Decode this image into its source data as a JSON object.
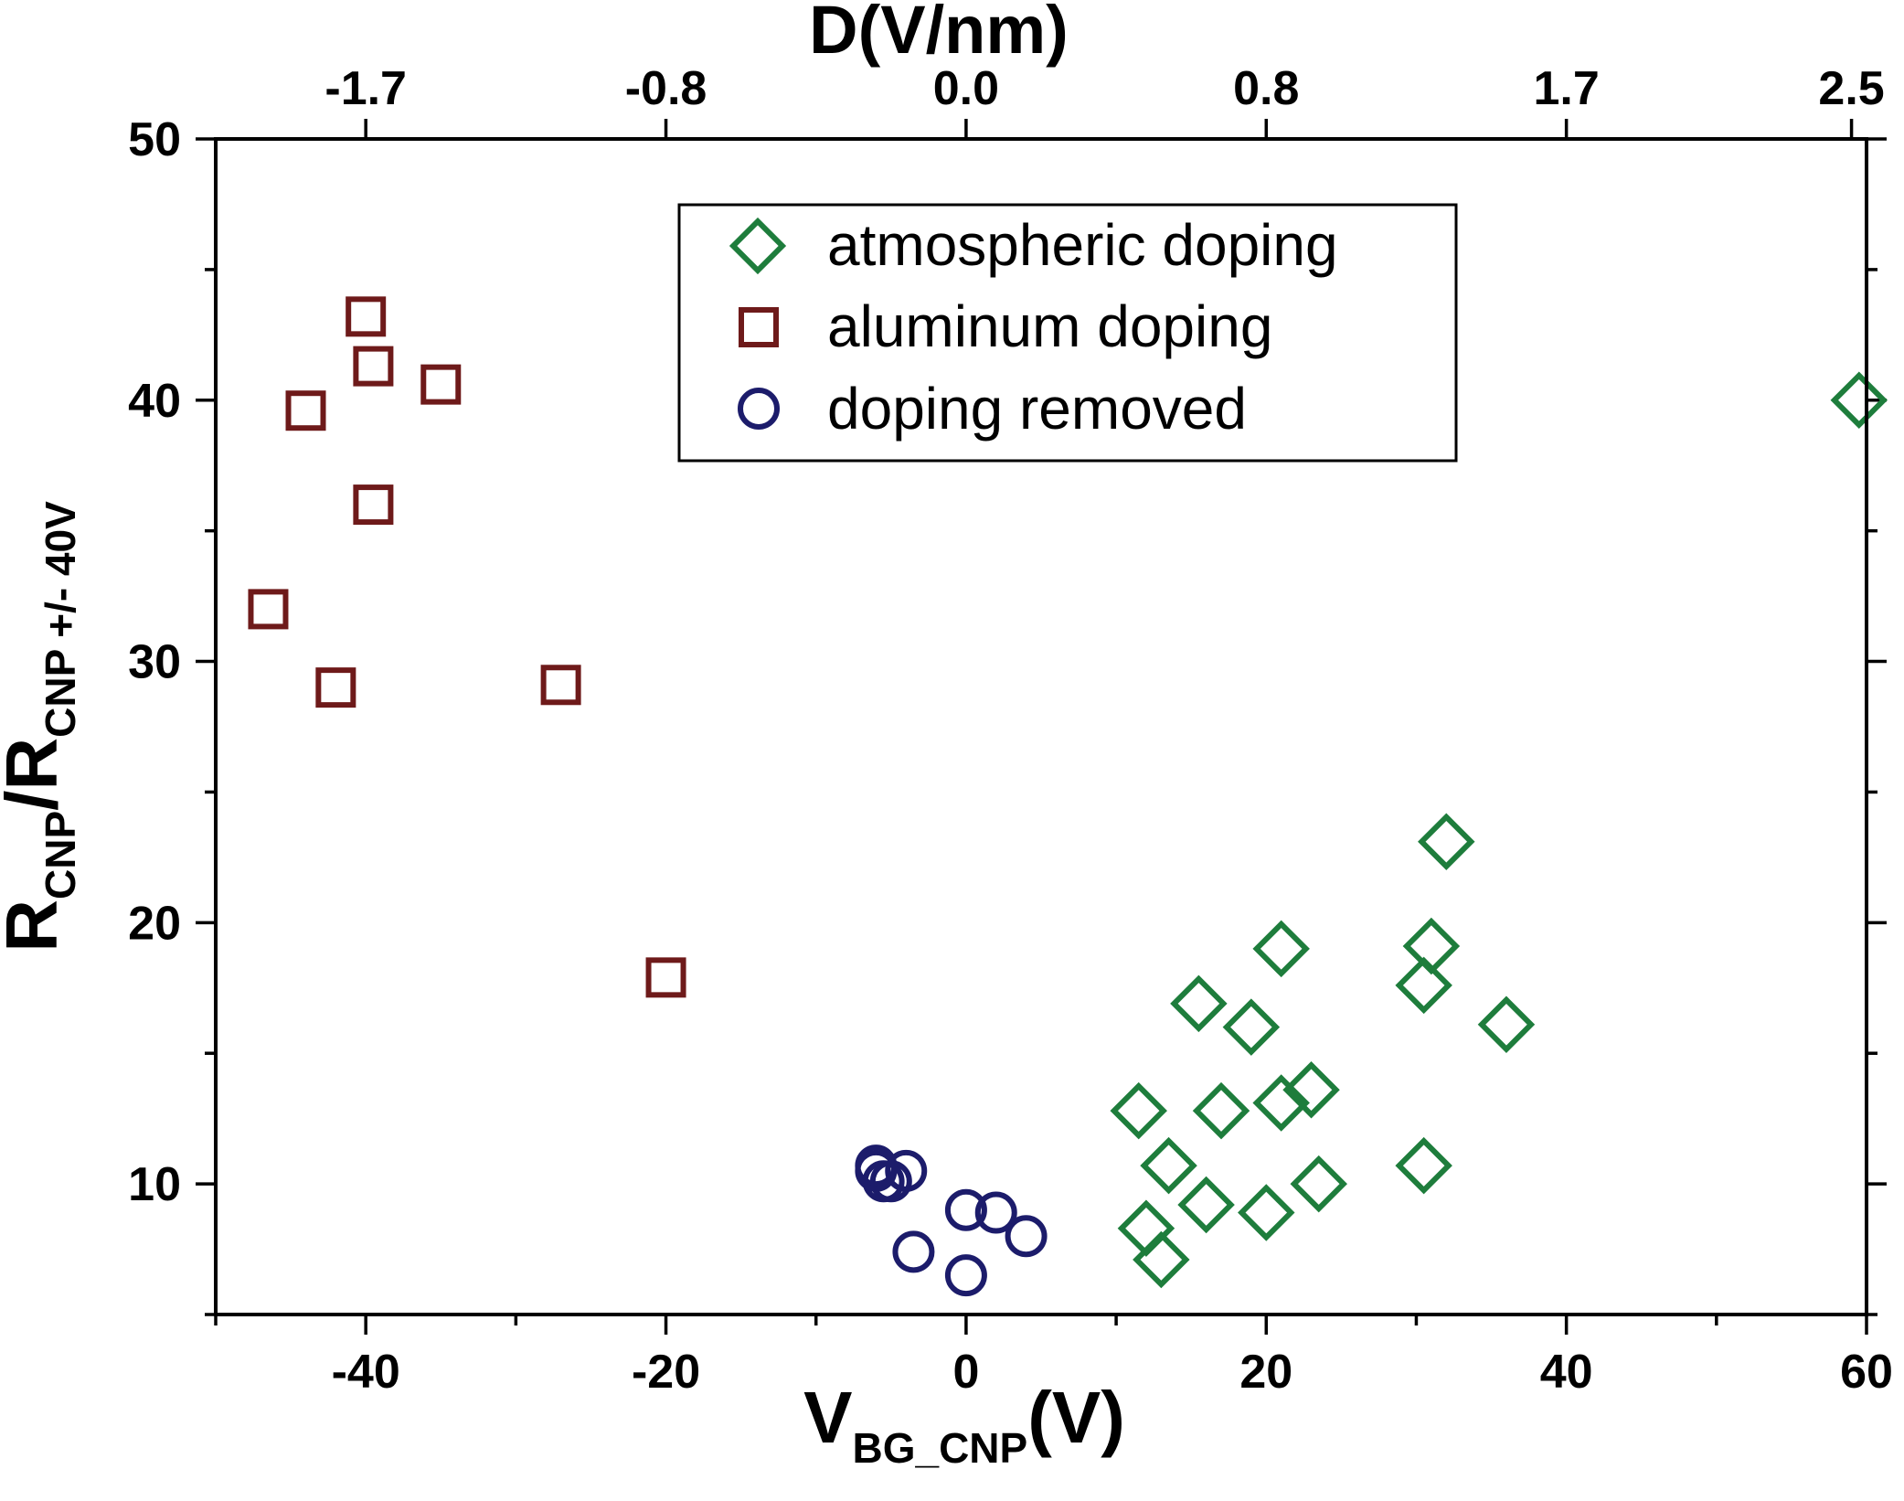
{
  "chart_data": {
    "type": "scatter",
    "x_axis": {
      "label_main": "V",
      "label_sub": "BG_CNP",
      "label_unit": "(V)",
      "range": [
        -50,
        60
      ],
      "ticks": [
        -40,
        -20,
        0,
        20,
        40,
        60
      ],
      "tick_labels": [
        "-40",
        "-20",
        "0",
        "20",
        "40",
        "60"
      ],
      "minor_ticks": [
        -50,
        -30,
        -10,
        10,
        30,
        50
      ]
    },
    "top_axis": {
      "label": "D(V/nm)",
      "tick_positions_bottom_units": [
        -40,
        -20,
        0,
        20,
        40,
        59
      ],
      "tick_labels": [
        "-1.7",
        "-0.8",
        "0.0",
        "0.8",
        "1.7",
        "2.5"
      ]
    },
    "y_axis": {
      "label_r1": "R",
      "label_sub1": "CNP",
      "label_slash": "/R",
      "label_sub2": "CNP +/- 40V",
      "range": [
        5,
        50
      ],
      "ticks": [
        10,
        20,
        30,
        40,
        50
      ],
      "tick_labels": [
        "10",
        "20",
        "30",
        "40",
        "50"
      ],
      "minor_ticks": [
        5,
        15,
        25,
        35,
        45
      ]
    },
    "legend": {
      "position": "top-center",
      "entries": [
        "atmospheric doping",
        "aluminum doping",
        "doping removed"
      ]
    },
    "series": [
      {
        "name": "atmospheric doping",
        "marker": "diamond",
        "color": "#1e7d3c",
        "points": [
          [
            59.5,
            40.0
          ],
          [
            32.0,
            23.1
          ],
          [
            31.0,
            19.1
          ],
          [
            30.5,
            17.6
          ],
          [
            36.0,
            16.1
          ],
          [
            21.0,
            19.0
          ],
          [
            15.5,
            16.9
          ],
          [
            19.0,
            16.0
          ],
          [
            11.5,
            12.8
          ],
          [
            17.0,
            12.8
          ],
          [
            21.0,
            13.1
          ],
          [
            23.0,
            13.6
          ],
          [
            13.5,
            10.7
          ],
          [
            30.5,
            10.7
          ],
          [
            23.5,
            10.0
          ],
          [
            16.0,
            9.2
          ],
          [
            20.0,
            8.9
          ],
          [
            12.0,
            8.3
          ],
          [
            13.0,
            7.1
          ]
        ]
      },
      {
        "name": "aluminum doping",
        "marker": "square",
        "color": "#6e1a1a",
        "points": [
          [
            -40.0,
            43.2
          ],
          [
            -39.5,
            41.3
          ],
          [
            -35.0,
            40.6
          ],
          [
            -44.0,
            39.6
          ],
          [
            -39.5,
            36.0
          ],
          [
            -46.5,
            32.0
          ],
          [
            -42.0,
            29.0
          ],
          [
            -27.0,
            29.1
          ],
          [
            -20.0,
            17.9
          ]
        ]
      },
      {
        "name": "doping removed",
        "marker": "circle",
        "color": "#1c1c6b",
        "points": [
          [
            -6.0,
            10.7
          ],
          [
            -5.5,
            10.1
          ],
          [
            -5.0,
            10.1
          ],
          [
            -4.0,
            10.5
          ],
          [
            -6.0,
            10.5
          ],
          [
            0.0,
            9.0
          ],
          [
            2.0,
            8.9
          ],
          [
            4.0,
            8.0
          ],
          [
            -3.5,
            7.4
          ],
          [
            0.0,
            6.5
          ]
        ]
      }
    ]
  }
}
